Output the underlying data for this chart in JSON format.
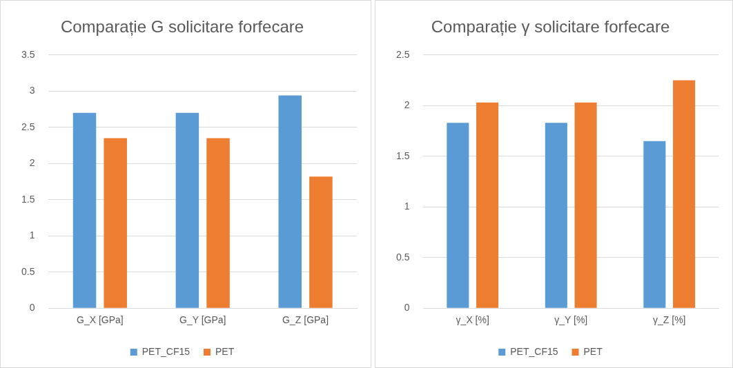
{
  "chart_data": [
    {
      "type": "bar",
      "title": "Comparație G solicitare forfecare",
      "categories": [
        "G_X [GPa]",
        "G_Y [GPa]",
        "G_Z [GPa]"
      ],
      "series": [
        {
          "name": "PET_CF15",
          "color": "#5b9bd5",
          "values": [
            2.7,
            2.7,
            2.94
          ]
        },
        {
          "name": "PET",
          "color": "#ed7d31",
          "values": [
            2.35,
            2.35,
            1.82
          ]
        }
      ],
      "ylim": [
        0,
        3.5
      ],
      "yticks": [
        0,
        0.5,
        1,
        1.5,
        2,
        2.5,
        3,
        3.5
      ],
      "grid": "y",
      "legend": "bottom"
    },
    {
      "type": "bar",
      "title": "Comparație γ solicitare forfecare",
      "categories": [
        "γ_X [%]",
        "γ_Y [%]",
        "γ_Z [%]"
      ],
      "series": [
        {
          "name": "PET_CF15",
          "color": "#5b9bd5",
          "values": [
            1.83,
            1.83,
            1.65
          ]
        },
        {
          "name": "PET",
          "color": "#ed7d31",
          "values": [
            2.03,
            2.03,
            2.25
          ]
        }
      ],
      "ylim": [
        0,
        2.5
      ],
      "yticks": [
        0,
        0.5,
        1,
        1.5,
        2,
        2.5
      ],
      "grid": "y",
      "legend": "bottom"
    }
  ]
}
